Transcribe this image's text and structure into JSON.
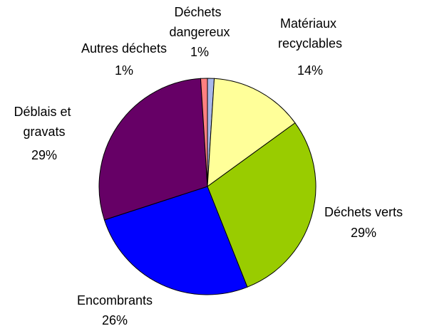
{
  "chart_data": {
    "type": "pie",
    "categories": [
      "Déchets dangereux",
      "Matériaux recyclables",
      "Déchets verts",
      "Encombrants",
      "Déblais et gravats",
      "Autres déchets"
    ],
    "values": [
      1,
      14,
      29,
      26,
      29,
      1
    ],
    "value_labels": [
      "1%",
      "14%",
      "29%",
      "26%",
      "29%",
      "1%"
    ],
    "colors": [
      "#a8b8ea",
      "#ffff99",
      "#99cc00",
      "#0000ff",
      "#660066",
      "#ff8080"
    ]
  }
}
